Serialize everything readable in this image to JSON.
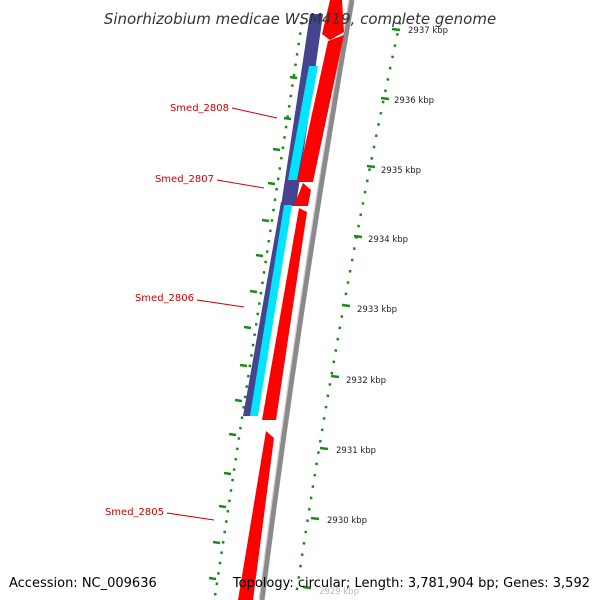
{
  "title": "Sinorhizobium medicae WSM419, complete genome",
  "footer": {
    "accession": "Accession: NC_009636",
    "summary": "Topology: circular; Length: 3,781,904 bp; Genes: 3,592"
  },
  "gene_labels": [
    {
      "name": "Smed_2808"
    },
    {
      "name": "Smed_2807"
    },
    {
      "name": "Smed_2806"
    },
    {
      "name": "Smed_2805"
    }
  ],
  "scale_ticks": [
    "2937 kbp",
    "2936 kbp",
    "2935 kbp",
    "2934 kbp",
    "2933 kbp",
    "2932 kbp",
    "2931 kbp",
    "2930 kbp",
    "2929 kbp"
  ],
  "colors": {
    "cds": "#ff0000",
    "gene_track": "#44448f",
    "rna_track": "#00e5ff",
    "backbone": "#8a8a8a",
    "tick": "#1a8a1a",
    "label": "#cc0000"
  }
}
